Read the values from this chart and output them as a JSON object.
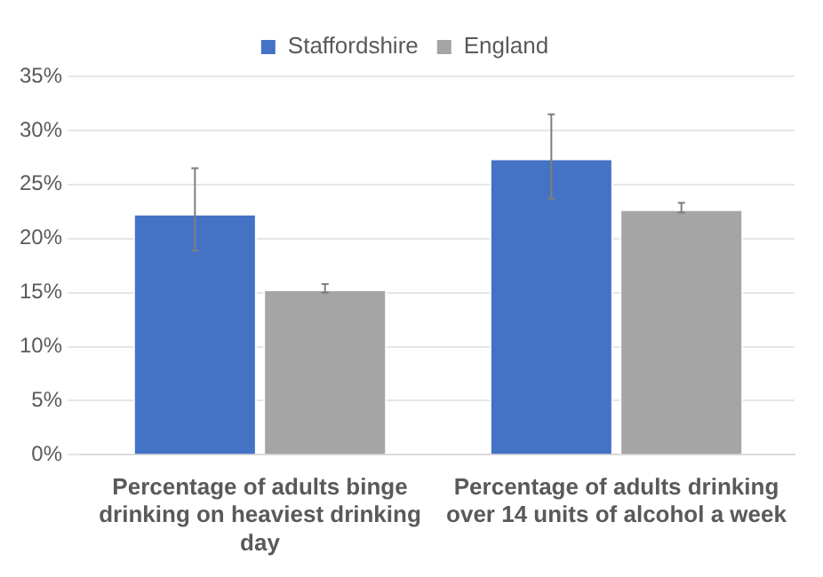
{
  "chart_data": {
    "type": "bar",
    "categories": [
      "Percentage of adults binge drinking on heaviest drinking day",
      "Percentage of adults drinking over 14 units of alcohol a week"
    ],
    "series": [
      {
        "name": "Staffordshire",
        "color": "#4472c4",
        "values": [
          22.3,
          27.4
        ],
        "errors": [
          [
            18.9,
            26.5
          ],
          [
            23.7,
            31.5
          ]
        ]
      },
      {
        "name": "England",
        "color": "#a5a5a5",
        "values": [
          15.3,
          22.7
        ],
        "errors": [
          [
            15.0,
            15.8
          ],
          [
            22.4,
            23.3
          ]
        ]
      }
    ],
    "ylim": [
      0,
      35
    ],
    "yticks": [
      {
        "value": 0,
        "label": "0%"
      },
      {
        "value": 5,
        "label": "5%"
      },
      {
        "value": 10,
        "label": "10%"
      },
      {
        "value": 15,
        "label": "15%"
      },
      {
        "value": 20,
        "label": "20%"
      },
      {
        "value": 25,
        "label": "25%"
      },
      {
        "value": 30,
        "label": "30%"
      },
      {
        "value": 35,
        "label": "35%"
      }
    ],
    "grid": "y",
    "legend": "top"
  }
}
